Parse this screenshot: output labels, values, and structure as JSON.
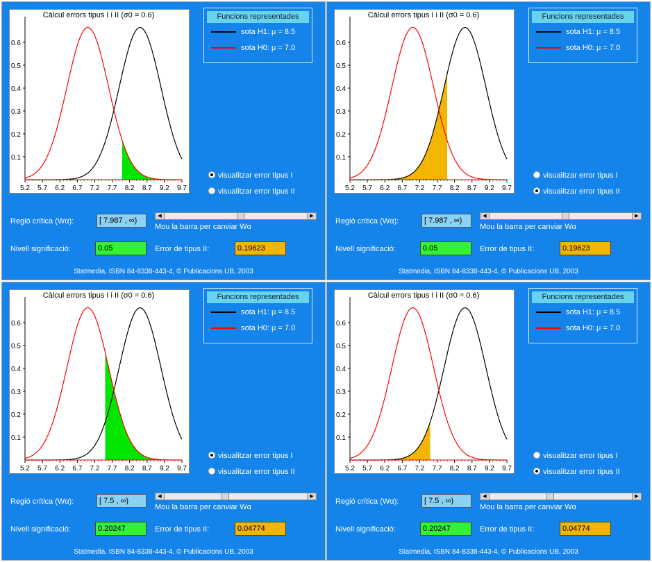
{
  "chart_data": [
    {
      "type": "line",
      "title": "Càlcul errors tipus I i II (σ0 = 0.6)",
      "xticks": [
        "5.2",
        "5.7",
        "6.2",
        "6.7",
        "7.2",
        "7.7",
        "8.2",
        "8.7",
        "9.2",
        "9.7"
      ],
      "yticks": [
        "0.1",
        "0.2",
        "0.3",
        "0.4",
        "0.5",
        "0.6"
      ],
      "xlim": [
        5.2,
        9.7
      ],
      "ylim": [
        0,
        0.7
      ],
      "series": [
        {
          "name": "sota H1: μ = 8.5",
          "mu": 8.5,
          "sigma": 0.6,
          "color": "#000000"
        },
        {
          "name": "sota H0: μ = 7.0",
          "mu": 7.0,
          "sigma": 0.6,
          "color": "#ff0000"
        }
      ],
      "shade": {
        "curve": "H0",
        "from": 7.987,
        "to": 9.7,
        "color": "#00e600"
      }
    },
    {
      "type": "line",
      "title": "Càlcul errors tipus I i II (σ0 = 0.6)",
      "xticks": [
        "5.2",
        "5.7",
        "6.2",
        "6.7",
        "7.2",
        "7.7",
        "8.2",
        "8.7",
        "9.2",
        "9.7"
      ],
      "yticks": [
        "0.1",
        "0.2",
        "0.3",
        "0.4",
        "0.5",
        "0.6"
      ],
      "xlim": [
        5.2,
        9.7
      ],
      "ylim": [
        0,
        0.7
      ],
      "series": [
        {
          "name": "sota H1: μ = 8.5",
          "mu": 8.5,
          "sigma": 0.6,
          "color": "#000000"
        },
        {
          "name": "sota H0: μ = 7.0",
          "mu": 7.0,
          "sigma": 0.6,
          "color": "#ff0000"
        }
      ],
      "shade": {
        "curve": "H1",
        "from": 5.2,
        "to": 7.987,
        "color": "#f2b600"
      }
    },
    {
      "type": "line",
      "title": "Càlcul errors tipus I i II (σ0 = 0.6)",
      "xticks": [
        "5.2",
        "5.7",
        "6.2",
        "6.7",
        "7.2",
        "7.7",
        "8.2",
        "8.7",
        "9.2",
        "9.7"
      ],
      "yticks": [
        "0.1",
        "0.2",
        "0.3",
        "0.4",
        "0.5",
        "0.6"
      ],
      "xlim": [
        5.2,
        9.7
      ],
      "ylim": [
        0,
        0.7
      ],
      "series": [
        {
          "name": "sota H1: μ = 8.5",
          "mu": 8.5,
          "sigma": 0.6,
          "color": "#000000"
        },
        {
          "name": "sota H0: μ = 7.0",
          "mu": 7.0,
          "sigma": 0.6,
          "color": "#ff0000"
        }
      ],
      "shade": {
        "curve": "H0",
        "from": 7.5,
        "to": 9.7,
        "color": "#00e600"
      }
    },
    {
      "type": "line",
      "title": "Càlcul errors tipus I i II (σ0 = 0.6)",
      "xticks": [
        "5.2",
        "5.7",
        "6.2",
        "6.7",
        "7.2",
        "7.7",
        "8.2",
        "8.7",
        "9.2",
        "9.7"
      ],
      "yticks": [
        "0.1",
        "0.2",
        "0.3",
        "0.4",
        "0.5",
        "0.6"
      ],
      "xlim": [
        5.2,
        9.7
      ],
      "ylim": [
        0,
        0.7
      ],
      "series": [
        {
          "name": "sota H1: μ = 8.5",
          "mu": 8.5,
          "sigma": 0.6,
          "color": "#000000"
        },
        {
          "name": "sota H0: μ = 7.0",
          "mu": 7.0,
          "sigma": 0.6,
          "color": "#ff0000"
        }
      ],
      "shade": {
        "curve": "H1",
        "from": 5.2,
        "to": 7.5,
        "color": "#f2b600"
      }
    }
  ],
  "panels": [
    {
      "legend_title": "Funcions  representades",
      "h1_label": "sota H1: μ = 8.5",
      "h0_label": "sota H0: μ = 7.0",
      "radio1": "visualitzar error tipus I",
      "radio2": "visualitzar error tipus II",
      "radio1_checked": true,
      "region_label": "Regió crítica (Wα):",
      "region_value": "[ 7.987 , ∞)",
      "slider_caption": "Mou la barra per canviar Wα",
      "slider_value": 0.53,
      "nivell_label": "Nivell significació:",
      "nivell_value": "0.05",
      "error_label": "Error de tipus II:",
      "error_value": "0.19623",
      "footer": "Statmedia, ISBN 84-8338-443-4, © Publicacions UB, 2003"
    },
    {
      "legend_title": "Funcions  representades",
      "h1_label": "sota H1: μ = 8.5",
      "h0_label": "sota H0: μ = 7.0",
      "radio1": "visualitzar error tipus I",
      "radio2": "visualitzar error tipus II",
      "radio1_checked": false,
      "region_label": "Regió crítica (Wα):",
      "region_value": "[ 7.987 , ∞)",
      "slider_caption": "Mou la barra per canviar Wα",
      "slider_value": 0.53,
      "nivell_label": "Nivell significació:",
      "nivell_value": "0.05",
      "error_label": "Error de tipus II:",
      "error_value": "0.19623",
      "footer": "Statmedia, ISBN 84-8338-443-4, © Publicacions UB, 2003"
    },
    {
      "legend_title": "Funcions  representades",
      "h1_label": "sota H1: μ = 8.5",
      "h0_label": "sota H0: μ = 7.0",
      "radio1": "visualitzar error tipus I",
      "radio2": "visualitzar error tipus II",
      "radio1_checked": true,
      "region_label": "Regió crítica (Wα):",
      "region_value": "[ 7.5 , ∞)",
      "slider_caption": "Mou la barra per canviar Wα",
      "slider_value": 0.42,
      "nivell_label": "Nivell significació:",
      "nivell_value": "0.20247",
      "error_label": "Error de tipus II:",
      "error_value": "0.04774",
      "footer": "Statmedia, ISBN 84-8338-443-4, © Publicacions UB, 2003"
    },
    {
      "legend_title": "Funcions  representades",
      "h1_label": "sota H1: μ = 8.5",
      "h0_label": "sota H0: μ = 7.0",
      "radio1": "visualitzar error tipus I",
      "radio2": "visualitzar error tipus II",
      "radio1_checked": false,
      "region_label": "Regió crítica (Wα):",
      "region_value": "[ 7.5 , ∞)",
      "slider_caption": "Mou la barra per canviar Wα",
      "slider_value": 0.42,
      "nivell_label": "Nivell significació:",
      "nivell_value": "0.20247",
      "error_label": "Error de tipus II:",
      "error_value": "0.04774",
      "footer": "Statmedia, ISBN 84-8338-443-4, © Publicacions UB, 2003"
    }
  ]
}
